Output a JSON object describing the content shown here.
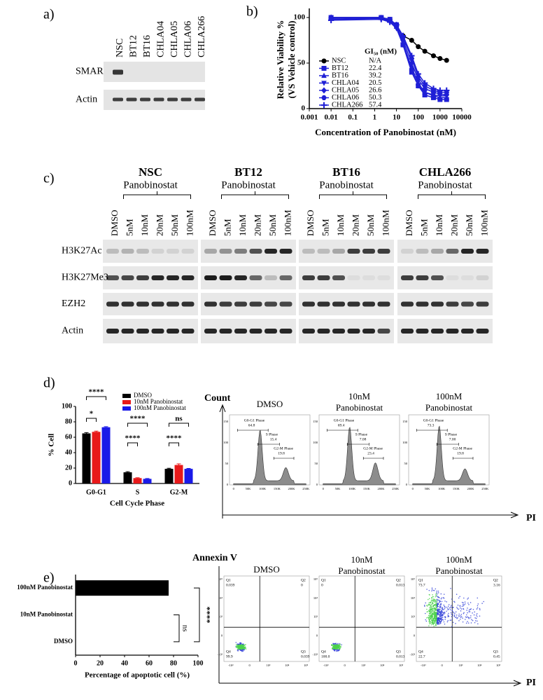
{
  "panel_labels": [
    "a)",
    "b)",
    "c)",
    "d)",
    "e)"
  ],
  "panel_a": {
    "lanes": [
      "NSC",
      "BT12",
      "BT16",
      "CHLA04",
      "CHLA05",
      "CHLA06",
      "CHLA266"
    ],
    "rows": [
      "SMARCB1",
      "Actin"
    ]
  },
  "chart_data": [
    {
      "type": "line",
      "y_label": [
        "Relative Viability %",
        "(VS Vehicle control)"
      ],
      "x_label": "Concentration of Panobinostat (nM)",
      "log_x": true,
      "x": [
        0.01,
        2,
        5,
        10,
        20,
        50,
        100,
        200,
        500,
        1000,
        2000
      ],
      "xlim": [
        0.001,
        10000
      ],
      "xticks": [
        0.001,
        0.01,
        0.1,
        1,
        10,
        100,
        1000,
        10000
      ],
      "ylim": [
        0,
        110
      ],
      "yticks": [
        0,
        50,
        100
      ],
      "legend_title": "GI₅₀ (nM)",
      "series": [
        {
          "name": "NSC",
          "gi50": "N/A",
          "color": "#000000",
          "marker": "circle",
          "values": [
            100,
            100,
            98,
            90,
            80,
            75,
            68,
            63,
            58,
            55,
            53
          ]
        },
        {
          "name": "BT12",
          "gi50": "22.4",
          "color": "#1f1fd6",
          "marker": "square",
          "values": [
            100,
            100,
            98,
            92,
            70,
            40,
            25,
            15,
            12,
            10,
            10
          ]
        },
        {
          "name": "BT16",
          "gi50": "39.2",
          "color": "#1f1fd6",
          "marker": "triangle-up",
          "values": [
            100,
            100,
            97,
            90,
            72,
            45,
            28,
            18,
            14,
            12,
            12
          ]
        },
        {
          "name": "CHLA04",
          "gi50": "20.5",
          "color": "#1f1fd6",
          "marker": "triangle-down",
          "values": [
            98,
            99,
            95,
            88,
            70,
            42,
            25,
            18,
            15,
            14,
            14
          ]
        },
        {
          "name": "CHLA05",
          "gi50": "26.6",
          "color": "#1f1fd6",
          "marker": "diamond",
          "values": [
            100,
            99,
            96,
            90,
            75,
            50,
            32,
            22,
            18,
            16,
            15
          ]
        },
        {
          "name": "CHLA06",
          "gi50": "50.3",
          "color": "#1f1fd6",
          "marker": "hexagon",
          "values": [
            99,
            100,
            97,
            92,
            78,
            55,
            35,
            25,
            20,
            18,
            18
          ]
        },
        {
          "name": "CHLA266",
          "gi50": "57.4",
          "color": "#1f1fd6",
          "marker": "cross",
          "values": [
            97,
            98,
            95,
            92,
            80,
            58,
            38,
            28,
            22,
            20,
            20
          ]
        }
      ]
    },
    {
      "type": "bar",
      "y_label": "% Cell",
      "x_label": "Cell Cycle Phase",
      "categories": [
        "G0-G1",
        "S",
        "G2-M"
      ],
      "ylim": [
        0,
        100
      ],
      "yticks": [
        0,
        20,
        40,
        60,
        80,
        100
      ],
      "series": [
        {
          "name": "DMSO",
          "color": "#000000",
          "values": [
            65,
            14.5,
            19
          ],
          "errors": [
            1,
            0.8,
            0.8
          ]
        },
        {
          "name": "10nM Panobinostat",
          "color": "#e8191a",
          "values": [
            67,
            7,
            24
          ],
          "errors": [
            1,
            0.5,
            1.5
          ]
        },
        {
          "name": "100nM Panobinostat",
          "color": "#1a1ae8",
          "values": [
            73,
            6,
            19
          ],
          "errors": [
            0.8,
            0.5,
            0.5
          ]
        }
      ],
      "annotations": [
        "****",
        "*",
        "****",
        "****",
        "ns",
        "****"
      ]
    },
    {
      "type": "hbar",
      "categories": [
        "100nM Panobinostat",
        "10nM Panobinostat",
        "DMSO"
      ],
      "values": [
        76,
        0,
        0
      ],
      "color": "#000000",
      "xlim": [
        0,
        100
      ],
      "xticks": [
        0,
        20,
        40,
        60,
        80,
        100
      ],
      "x_label": "Percentage of apoptotic cell (%)",
      "annotations": [
        "****",
        "ns"
      ]
    }
  ],
  "panel_c": {
    "groups": [
      {
        "name": "NSC",
        "treatment": "Panobinostat",
        "lanes": [
          "DMSO",
          "5nM",
          "10nM",
          "20nM",
          "50nM",
          "100nM"
        ]
      },
      {
        "name": "BT12",
        "treatment": "Panobinostat",
        "lanes": [
          "DMSO",
          "5nM",
          "10nM",
          "20nM",
          "50nM",
          "100nM"
        ]
      },
      {
        "name": "BT16",
        "treatment": "Panobinostat",
        "lanes": [
          "DMSO",
          "5nM",
          "10nM",
          "20nM",
          "50nM",
          "100nM"
        ]
      },
      {
        "name": "CHLA266",
        "treatment": "Panobinostat",
        "lanes": [
          "DMSO",
          "5nM",
          "10nM",
          "20nM",
          "50nM",
          "100nM"
        ]
      }
    ],
    "rows": [
      "H3K27Ac",
      "H3K27Me3",
      "EZH2",
      "Actin"
    ]
  },
  "flow_cell_cycle": {
    "y_title": "Count",
    "x_title": "PI",
    "x_ticks": [
      "0",
      "50K",
      "100K",
      "150K",
      "200K",
      "250K"
    ],
    "y_ticks": [
      "0",
      "50",
      "100",
      "150"
    ],
    "panels": [
      {
        "title": [
          "DMSO"
        ],
        "gates": [
          {
            "name": "G0-G1 Phase",
            "value": "64.8"
          },
          {
            "name": "S Phase",
            "value": "15.4"
          },
          {
            "name": "G2-M Phase",
            "value": "19.8"
          }
        ]
      },
      {
        "title": [
          "10nM",
          "Panobinostat"
        ],
        "gates": [
          {
            "name": "G0-G1 Phase",
            "value": "69.4"
          },
          {
            "name": "S Phase",
            "value": "7.08"
          },
          {
            "name": "G2-M Phase",
            "value": "23.4"
          }
        ]
      },
      {
        "title": [
          "100nM",
          "Panobinostat"
        ],
        "gates": [
          {
            "name": "G0-G1 Phase",
            "value": "73.3"
          },
          {
            "name": "S Phase",
            "value": "7.00"
          },
          {
            "name": "G2-M Phase",
            "value": "19.8"
          }
        ]
      }
    ]
  },
  "flow_apoptosis": {
    "y_title": "Annexin V",
    "x_title": "PI",
    "ticks": [
      "-10³",
      "0",
      "10³",
      "10⁴",
      "10⁵"
    ],
    "panels": [
      {
        "title": [
          "DMSO"
        ],
        "quadrants": [
          {
            "name": "Q1",
            "value": "0.039"
          },
          {
            "name": "Q2",
            "value": "0"
          },
          {
            "name": "Q3",
            "value": "0.039"
          },
          {
            "name": "Q4",
            "value": "99.9"
          }
        ]
      },
      {
        "title": [
          "10nM",
          "Panobinostat"
        ],
        "quadrants": [
          {
            "name": "Q1",
            "value": "0"
          },
          {
            "name": "Q2",
            "value": "0.013"
          },
          {
            "name": "Q3",
            "value": "0.013"
          },
          {
            "name": "Q4",
            "value": "100.0"
          }
        ]
      },
      {
        "title": [
          "100nM",
          "Panobinostat"
        ],
        "quadrants": [
          {
            "name": "Q1",
            "value": "73.7"
          },
          {
            "name": "Q2",
            "value": "3.16"
          },
          {
            "name": "Q3",
            "value": "0.45"
          },
          {
            "name": "Q4",
            "value": "22.7"
          }
        ]
      }
    ]
  }
}
